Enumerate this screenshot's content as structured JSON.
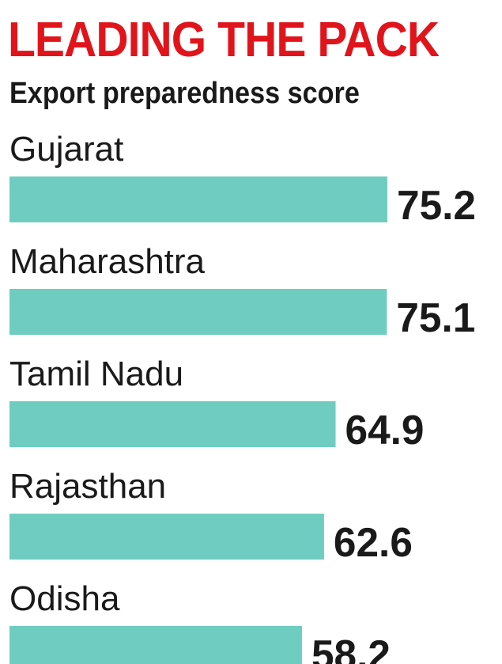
{
  "header": {
    "title": "LEADING THE PACK",
    "subtitle": "Export preparedness score"
  },
  "chart_data": {
    "type": "bar",
    "orientation": "horizontal",
    "categories": [
      "Gujarat",
      "Maharashtra",
      "Tamil Nadu",
      "Rajasthan",
      "Odisha"
    ],
    "values": [
      75.2,
      75.1,
      64.9,
      62.6,
      58.2
    ],
    "value_labels": [
      "75.2",
      "75.1",
      "64.9",
      "62.6",
      "58.2"
    ],
    "title": "LEADING THE PACK",
    "subtitle": "Export preparedness score",
    "bar_color": "#6ecdc0",
    "label_color": "#1a1a1a",
    "grid": false
  }
}
